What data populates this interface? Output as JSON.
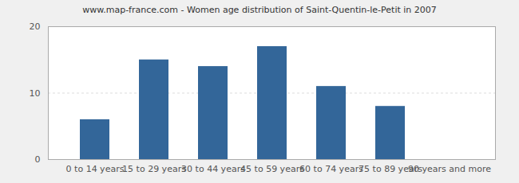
{
  "chart_data": {
    "type": "bar",
    "title": "www.map-france.com - Women age distribution of Saint-Quentin-le-Petit in 2007",
    "categories": [
      "0 to 14 years",
      "15 to 29 years",
      "30 to 44 years",
      "45 to 59 years",
      "60 to 74 years",
      "75 to 89 years",
      "90 years and more"
    ],
    "values": [
      6,
      15,
      14,
      17,
      11,
      8,
      0
    ],
    "color": "#336699",
    "ylim": [
      0,
      20
    ],
    "yticks": [
      0,
      10,
      20
    ],
    "grid": true
  }
}
